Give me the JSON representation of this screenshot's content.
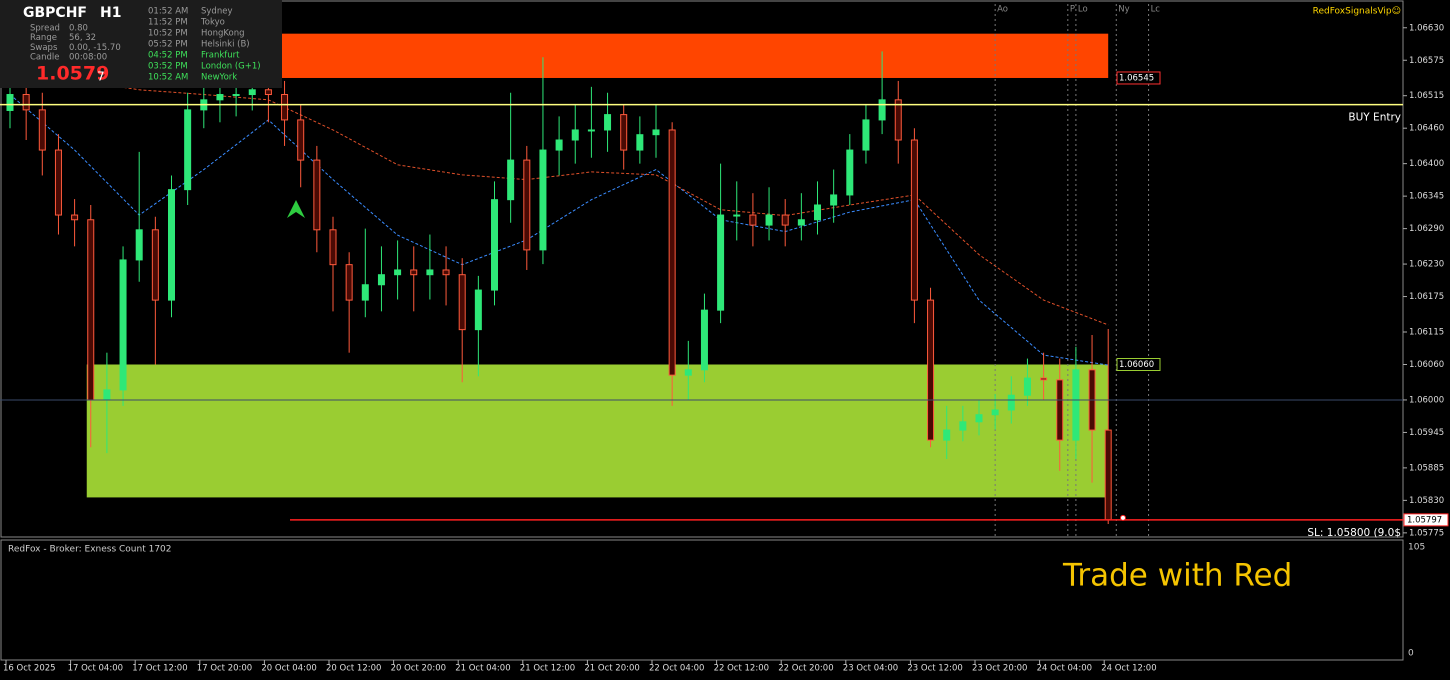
{
  "info_panel": {
    "symbol": "GBPCHF",
    "timeframe": "H1",
    "rows": [
      [
        "Spread",
        "0.80"
      ],
      [
        "Range",
        "56, 32"
      ],
      [
        "Swaps",
        "0.00, -15.70"
      ],
      [
        "Candle",
        "00:08:00"
      ]
    ],
    "price": "1.0579",
    "price_digit": "7",
    "sessions": [
      {
        "time": "01:52 AM",
        "name": "Sydney",
        "color": "#9a9a9a"
      },
      {
        "time": "11:52 PM",
        "name": "Tokyo",
        "color": "#9a9a9a"
      },
      {
        "time": "10:52 PM",
        "name": "HongKong",
        "color": "#9a9a9a"
      },
      {
        "time": "05:52 PM",
        "name": "Helsinki  (B)",
        "color": "#9a9a9a"
      },
      {
        "time": "04:52 PM",
        "name": "Frankfurt",
        "color": "#3ee05a"
      },
      {
        "time": "03:52 PM",
        "name": "London  (G+1)",
        "color": "#3ee05a"
      },
      {
        "time": "10:52 AM",
        "name": "NewYork",
        "color": "#3ee05a"
      }
    ]
  },
  "brand": "RedFoxSignalsVip☺",
  "chart_data": {
    "type": "candlestick",
    "categories": [
      "16 Oct 2025",
      null,
      null,
      null,
      "17 Oct 04:00",
      null,
      null,
      null,
      "17 Oct 12:00",
      null,
      null,
      null,
      "17 Oct 20:00",
      null,
      null,
      null,
      "20 Oct 04:00",
      null,
      null,
      null,
      "20 Oct 12:00",
      null,
      null,
      null,
      "20 Oct 20:00",
      null,
      null,
      null,
      "21 Oct 04:00",
      null,
      null,
      null,
      "21 Oct 12:00",
      null,
      null,
      null,
      "21 Oct 20:00",
      null,
      null,
      null,
      "22 Oct 04:00",
      null,
      null,
      null,
      "22 Oct 12:00",
      null,
      null,
      null,
      "22 Oct 20:00",
      null,
      null,
      null,
      "23 Oct 04:00",
      null,
      null,
      null,
      "23 Oct 12:00",
      null,
      null,
      null,
      "23 Oct 20:00",
      null,
      null,
      null,
      "24 Oct 04:00",
      null,
      null,
      null,
      "24 Oct 12:00"
    ],
    "open": [
      1.0649,
      1.06517,
      1.06491,
      1.06423,
      1.06313,
      1.06305,
      1.06,
      1.06017,
      1.06237,
      1.06288,
      1.06169,
      1.06356,
      1.06491,
      1.06508,
      1.06517,
      1.06517,
      1.06525,
      1.06517,
      1.06474,
      1.06406,
      1.06288,
      1.06229,
      1.06169,
      1.06195,
      1.06212,
      1.0622,
      1.06212,
      1.0622,
      1.06212,
      1.06119,
      1.06186,
      1.06339,
      1.06406,
      1.06254,
      1.06423,
      1.0644,
      1.06457,
      1.06457,
      1.06483,
      1.06423,
      1.06449,
      1.06457,
      1.06042,
      1.06051,
      1.06152,
      1.06313,
      1.06313,
      1.06296,
      1.06313,
      1.06296,
      1.06305,
      1.0633,
      1.06347,
      1.06423,
      1.06474,
      1.06508,
      1.0644,
      1.06169,
      1.05932,
      1.05949,
      1.05963,
      1.05975,
      1.05983,
      1.06008,
      1.06037,
      1.06034,
      1.05932,
      1.06051,
      1.05949
    ],
    "high": [
      1.0656,
      1.0654,
      1.0652,
      1.0645,
      1.0634,
      1.0633,
      1.0608,
      1.0626,
      1.0642,
      1.0631,
      1.0638,
      1.0652,
      1.0658,
      1.0656,
      1.0657,
      1.066,
      1.0658,
      1.0654,
      1.065,
      1.0643,
      1.0631,
      1.0625,
      1.0629,
      1.0626,
      1.0627,
      1.0626,
      1.0628,
      1.0626,
      1.0624,
      1.0621,
      1.0637,
      1.0652,
      1.0643,
      1.0658,
      1.0648,
      1.065,
      1.0653,
      1.0652,
      1.065,
      1.0648,
      1.065,
      1.0647,
      1.061,
      1.0618,
      1.064,
      1.0637,
      1.0635,
      1.0636,
      1.0634,
      1.0635,
      1.0637,
      1.0639,
      1.0645,
      1.065,
      1.0659,
      1.0654,
      1.0646,
      1.0619,
      1.0599,
      1.0599,
      1.06,
      1.0601,
      1.0604,
      1.0607,
      1.0608,
      1.0607,
      1.0609,
      1.0611,
      1.0612
    ],
    "low": [
      1.0646,
      1.0644,
      1.0638,
      1.0628,
      1.0626,
      1.0592,
      1.0591,
      1.0599,
      1.062,
      1.0606,
      1.0614,
      1.0633,
      1.0646,
      1.0647,
      1.0648,
      1.0649,
      1.0647,
      1.0643,
      1.0636,
      1.0625,
      1.0615,
      1.0608,
      1.0614,
      1.0615,
      1.0617,
      1.0615,
      1.0617,
      1.0616,
      1.0603,
      1.0604,
      1.0616,
      1.063,
      1.0622,
      1.0623,
      1.0638,
      1.064,
      1.0641,
      1.0642,
      1.0639,
      1.064,
      1.0641,
      1.0599,
      1.06,
      1.0603,
      1.0613,
      1.0627,
      1.0626,
      1.0627,
      1.0626,
      1.0627,
      1.0628,
      1.063,
      1.0633,
      1.064,
      1.0645,
      1.064,
      1.0613,
      1.0592,
      1.059,
      1.0593,
      1.0594,
      1.0595,
      1.0596,
      1.0599,
      1.06,
      1.0588,
      1.059,
      1.0586,
      1.0579
    ],
    "close": [
      1.06517,
      1.06491,
      1.06423,
      1.06313,
      1.06305,
      1.06,
      1.06017,
      1.06237,
      1.06288,
      1.06169,
      1.06356,
      1.06491,
      1.06508,
      1.06517,
      1.06517,
      1.06525,
      1.06517,
      1.06474,
      1.06406,
      1.06288,
      1.06229,
      1.06169,
      1.06195,
      1.06212,
      1.0622,
      1.06212,
      1.0622,
      1.06212,
      1.06119,
      1.06186,
      1.06339,
      1.06406,
      1.06254,
      1.06423,
      1.0644,
      1.06457,
      1.06457,
      1.06483,
      1.06423,
      1.06449,
      1.06457,
      1.06042,
      1.06051,
      1.06152,
      1.06313,
      1.06313,
      1.06296,
      1.06313,
      1.06296,
      1.06305,
      1.0633,
      1.06347,
      1.06423,
      1.06474,
      1.06508,
      1.0644,
      1.06169,
      1.05932,
      1.05949,
      1.05963,
      1.05975,
      1.05983,
      1.06008,
      1.06037,
      1.06034,
      1.05932,
      1.06051,
      1.05949,
      1.05797
    ],
    "up_color": "#2ee878",
    "down_color": "#ff5a3c",
    "ylim": [
      1.05768,
      1.06677
    ],
    "yticks": [
      {
        "value": 1.0663,
        "label": "1.06630"
      },
      {
        "value": 1.06575,
        "label": "1.06575"
      },
      {
        "value": 1.06515,
        "label": "1.06515"
      },
      {
        "value": 1.0646,
        "label": "1.06460"
      },
      {
        "value": 1.064,
        "label": "1.06400"
      },
      {
        "value": 1.06345,
        "label": "1.06345"
      },
      {
        "value": 1.0629,
        "label": "1.06290"
      },
      {
        "value": 1.0623,
        "label": "1.06230"
      },
      {
        "value": 1.06175,
        "label": "1.06175"
      },
      {
        "value": 1.06115,
        "label": "1.06115"
      },
      {
        "value": 1.0606,
        "label": "1.06060"
      },
      {
        "value": 1.06,
        "label": "1.06000"
      },
      {
        "value": 1.05945,
        "label": "1.05945"
      },
      {
        "value": 1.05885,
        "label": "1.05885"
      },
      {
        "value": 1.0583,
        "label": "1.05830"
      },
      {
        "value": 1.05775,
        "label": "1.05775"
      }
    ],
    "moving_averages": [
      {
        "color": "#3a8cff",
        "x": [
          0,
          4,
          8,
          12,
          16,
          20,
          24,
          28,
          32,
          36,
          40,
          44,
          48,
          52,
          56,
          60,
          64,
          68
        ],
        "values": [
          1.06517,
          1.06423,
          1.06313,
          1.0639,
          1.06474,
          1.06373,
          1.06279,
          1.06229,
          1.06271,
          1.06339,
          1.0639,
          1.06305,
          1.06285,
          1.06318,
          1.06339,
          1.06169,
          1.06076,
          1.06059
        ]
      },
      {
        "color": "#e0502a",
        "x": [
          0,
          4,
          8,
          12,
          16,
          20,
          24,
          28,
          32,
          36,
          40,
          44,
          48,
          52,
          56,
          60,
          64,
          68
        ],
        "values": [
          1.06559,
          1.06542,
          1.06525,
          1.06517,
          1.06508,
          1.06457,
          1.06398,
          1.06381,
          1.06373,
          1.06386,
          1.06381,
          1.06322,
          1.06312,
          1.0633,
          1.06347,
          1.06246,
          1.06169,
          1.06127
        ]
      }
    ],
    "zones": [
      {
        "low": {
          "value": 1.06545,
          "label": "1.06545"
        },
        "high": 1.0662,
        "start": 17,
        "end": 68,
        "color": "#ff4500",
        "border": "#ff3030"
      },
      {
        "low": 1.05835,
        "high": {
          "value": 1.0606,
          "label": "1.06060"
        },
        "start": 5,
        "end": 68,
        "color": "#9acd32",
        "border": "#9acd32"
      }
    ],
    "levels": [
      {
        "value": 1.065,
        "label": "BUY Entry",
        "color": "#ffff80"
      },
      {
        "value": 1.06,
        "color": "#3a4a6a"
      },
      {
        "value": 1.05797,
        "label": "SL: 1.05800 (9.0$",
        "color": "#ff2020"
      }
    ],
    "current_price": {
      "value": 1.05797,
      "label": "1.05797"
    },
    "sessions": [
      {
        "name": "Ao",
        "at": 61
      },
      {
        "name": "P",
        "at": 65.5
      },
      {
        "name": "Lo",
        "at": 66
      },
      {
        "name": "Ny",
        "at": 68.5
      },
      {
        "name": "Lc",
        "at": 70.5
      }
    ]
  },
  "indicator": {
    "title": "RedFox -  Broker: Exness    Count  1702",
    "top_label": "105",
    "bottom_label": "0",
    "annotation": "Trade with Red"
  }
}
